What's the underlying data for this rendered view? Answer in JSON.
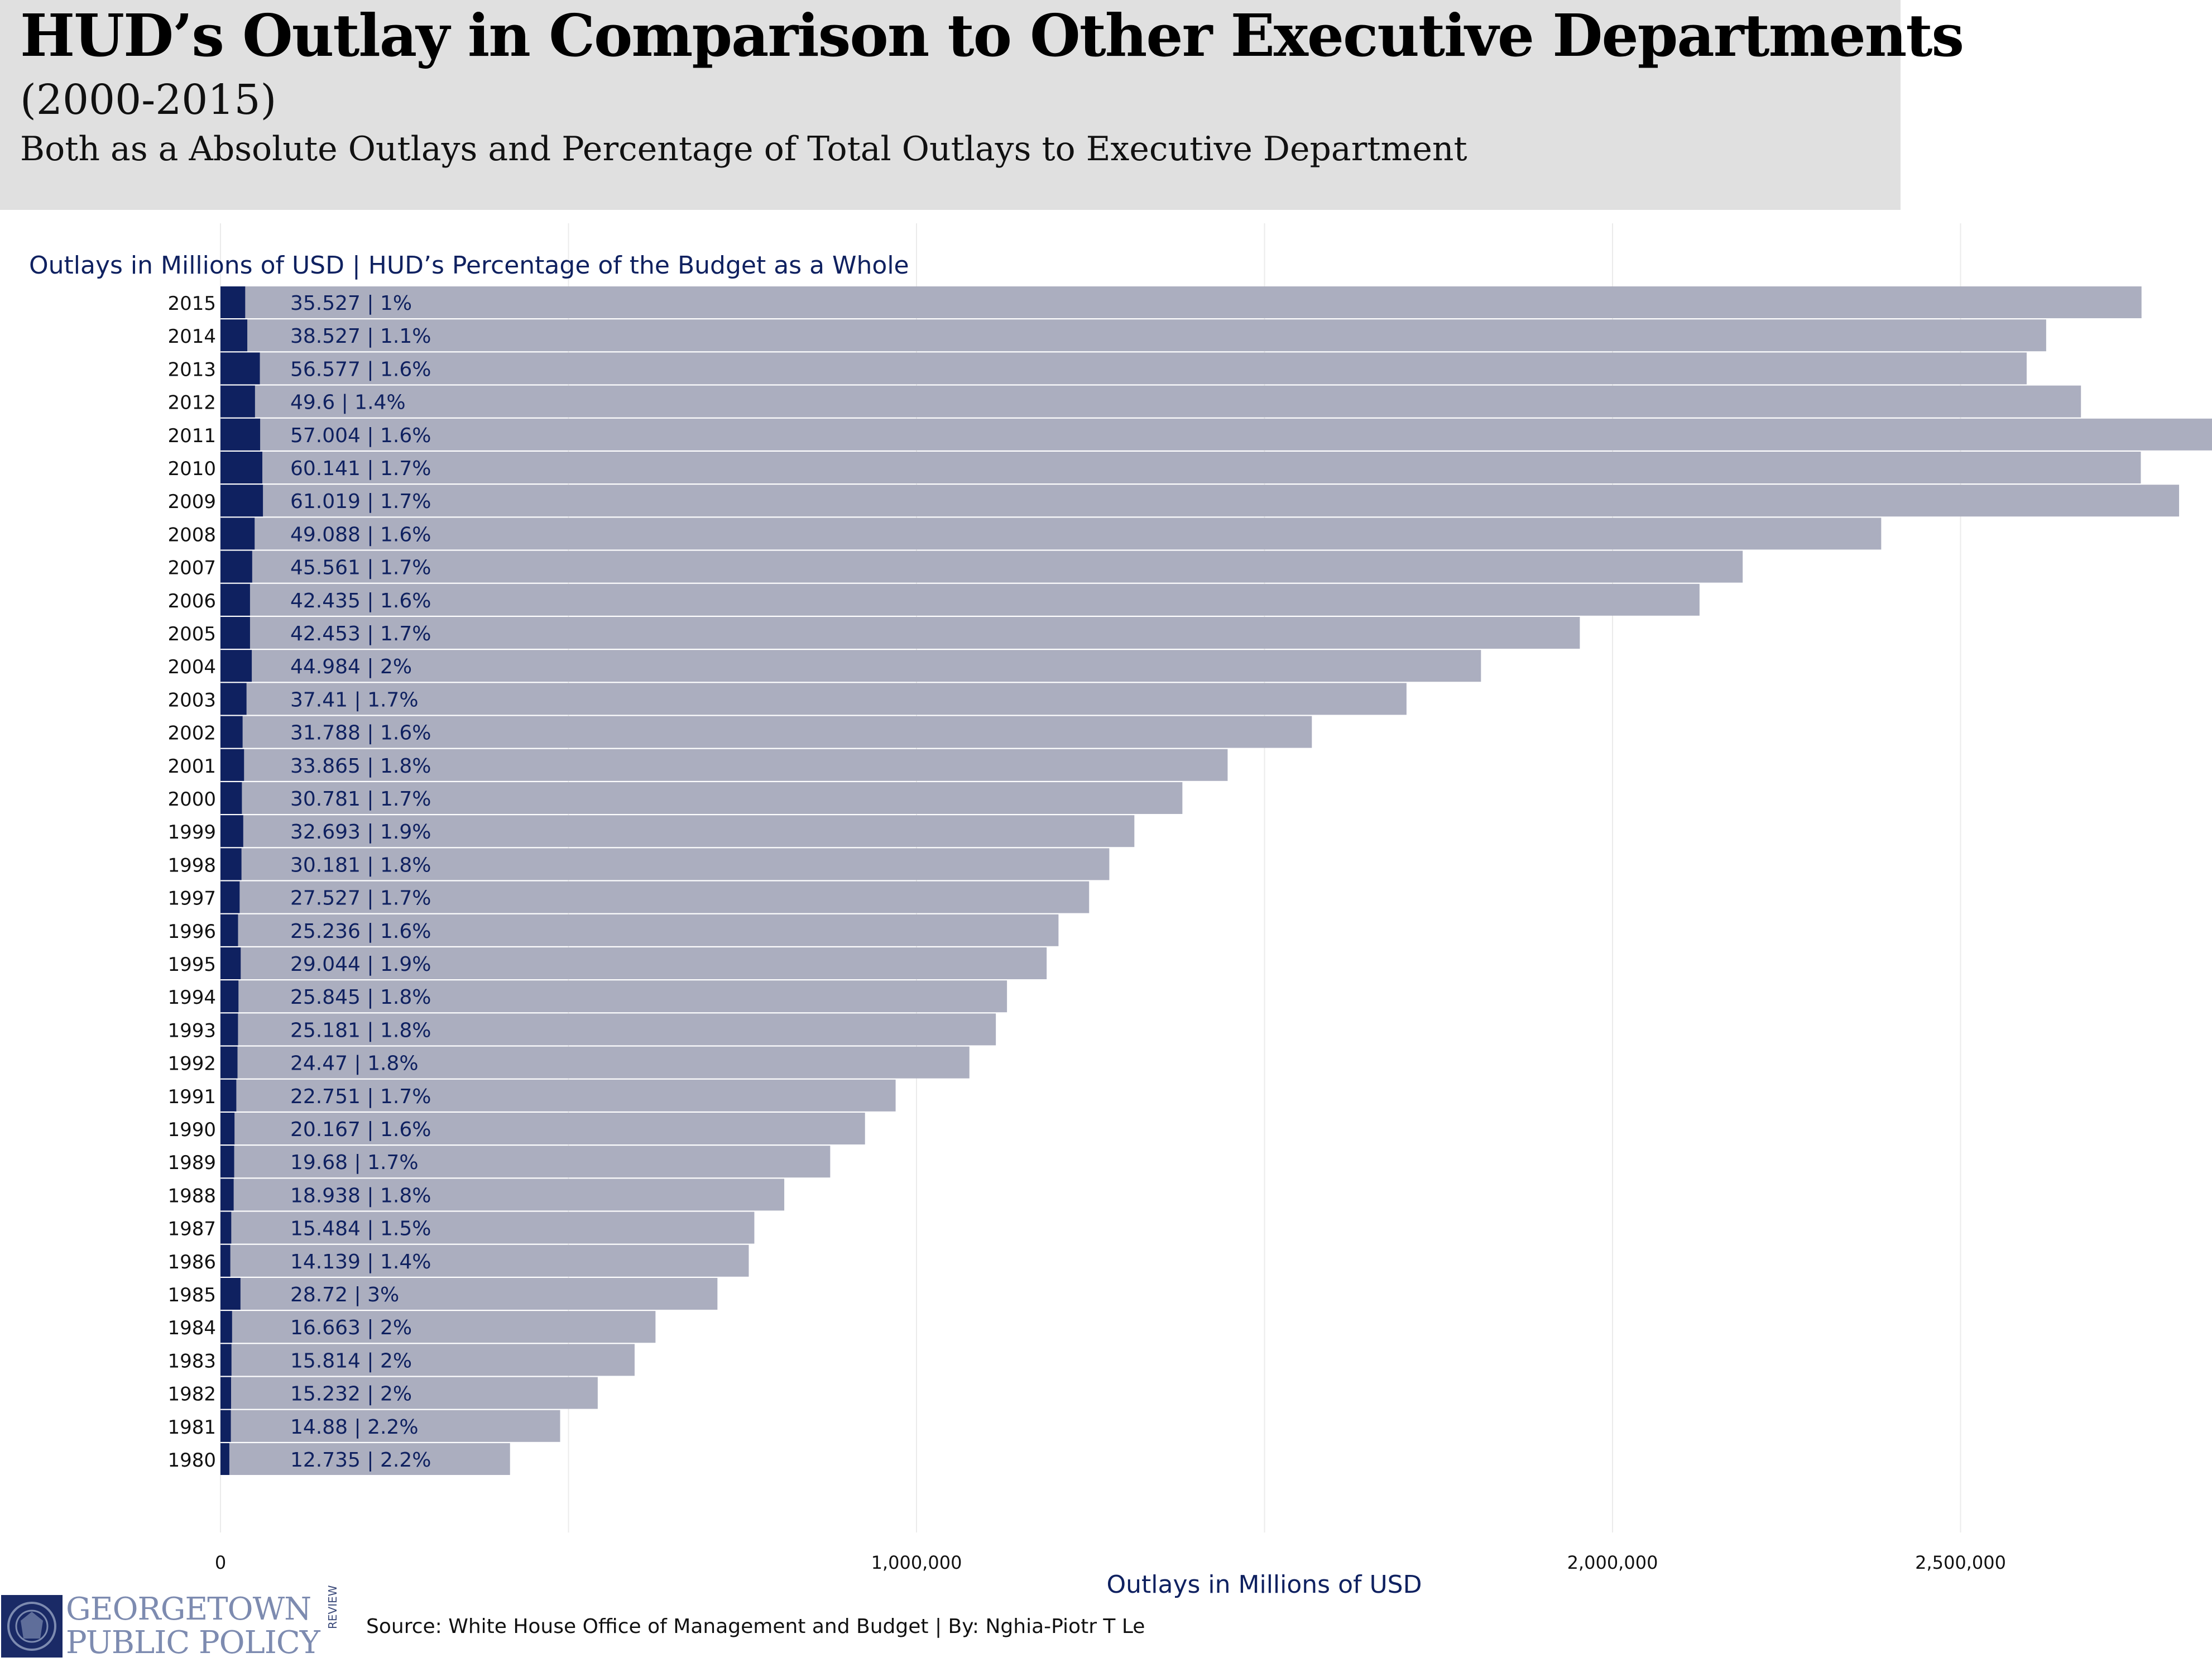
{
  "header": {
    "title": "HUD’s Outlay in Comparison to Other Executive Departments",
    "subtitle": "(2000-2015)",
    "description": "Both as a Absolute Outlays and Percentage of Total Outlays to Executive Department"
  },
  "footer": {
    "logo_line1": "GEORGETOWN",
    "logo_line2": "PUBLIC POLICY",
    "logo_review": "REVIEW",
    "source": "Source: White House Office of Management and Budget | By: Nghia-Piotr T Le"
  },
  "colors": {
    "hud_bar": "#0f2160",
    "total_bar": "#abaebf",
    "label_text": "#0f2160",
    "header_bg": "#e0e0e0"
  },
  "chart_data": {
    "type": "bar",
    "orientation": "horizontal",
    "stacked": false,
    "title": "Outlays in Millions of USD | HUD’s Percentage of the Budget as a Whole",
    "xlabel": "Outlays in Millions of USD",
    "ylabel": "",
    "xlim": [
      0,
      2860000
    ],
    "x_ticks": [
      0,
      1000000,
      2000000,
      2500000
    ],
    "x_tick_labels": [
      "0",
      "1,000,000",
      "2,000,000",
      "2,500,000"
    ],
    "grid": true,
    "categories": [
      "2015",
      "2014",
      "2013",
      "2012",
      "2011",
      "2010",
      "2009",
      "2008",
      "2007",
      "2006",
      "2005",
      "2004",
      "2003",
      "2002",
      "2001",
      "2000",
      "1999",
      "1998",
      "1997",
      "1996",
      "1995",
      "1994",
      "1993",
      "1992",
      "1991",
      "1990",
      "1989",
      "1988",
      "1987",
      "1986",
      "1985",
      "1984",
      "1983",
      "1982",
      "1981",
      "1980"
    ],
    "series": [
      {
        "values": [
          2760000,
          2623000,
          2595000,
          2673000,
          2874000,
          2759000,
          2814000,
          2386000,
          2187000,
          2125000,
          1953000,
          1811000,
          1704000,
          1568000,
          1447000,
          1382000,
          1313000,
          1277000,
          1248000,
          1204000,
          1187000,
          1130000,
          1114000,
          1076000,
          970000,
          926000,
          876000,
          810000,
          767000,
          759000,
          714000,
          625000,
          595000,
          542000,
          488000,
          416000
        ],
        "color": "#abaebf"
      },
      {
        "values": [
          35527,
          38527,
          56577,
          49600,
          57004,
          60141,
          61019,
          49088,
          45561,
          42435,
          42453,
          44984,
          37410,
          31788,
          33865,
          30781,
          32693,
          30181,
          27527,
          25236,
          29044,
          25845,
          25181,
          24470,
          22751,
          20167,
          19680,
          18938,
          15484,
          14139,
          28720,
          16663,
          15814,
          15232,
          14880,
          12735
        ],
        "color": "#0f2160"
      }
    ],
    "data_labels": [
      "35.527 | 1%",
      "38.527 | 1.1%",
      "56.577 | 1.6%",
      "49.6 | 1.4%",
      "57.004 | 1.6%",
      "60.141 | 1.7%",
      "61.019 | 1.7%",
      "49.088 | 1.6%",
      "45.561 | 1.7%",
      "42.435 | 1.6%",
      "42.453 | 1.7%",
      "44.984 | 2%",
      "37.41 | 1.7%",
      "31.788 | 1.6%",
      "33.865 | 1.8%",
      "30.781 | 1.7%",
      "32.693 | 1.9%",
      "30.181 | 1.8%",
      "27.527 | 1.7%",
      "25.236 | 1.6%",
      "29.044 | 1.9%",
      "25.845 | 1.8%",
      "25.181 | 1.8%",
      "24.47 | 1.8%",
      "22.751 | 1.7%",
      "20.167 | 1.6%",
      "19.68 | 1.7%",
      "18.938 | 1.8%",
      "15.484 | 1.5%",
      "14.139 | 1.4%",
      "28.72 | 3%",
      "16.663 | 2%",
      "15.814 | 2%",
      "15.232 | 2%",
      "14.88 | 2.2%",
      "12.735 | 2.2%"
    ]
  }
}
